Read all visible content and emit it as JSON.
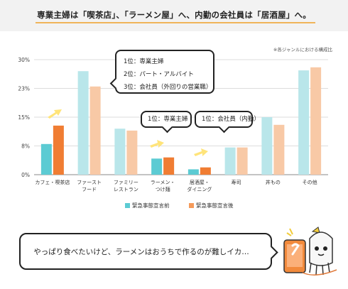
{
  "headline": {
    "title": "専業主婦は「喫茶店」、「ラーメン屋」へ、内勤の会社員は「居酒屋」へ。"
  },
  "chart_data": {
    "type": "bar",
    "note": "※各ジャンルにおける構成比",
    "categories": [
      "カフェ・喫茶店",
      "ファースト\nフード",
      "ファミリー\nレストラン",
      "ラーメン・\nつけ麺",
      "居酒屋・\nダイニング",
      "寿司",
      "丼もの",
      "その他"
    ],
    "series": [
      {
        "name": "緊急事態宣言前",
        "values": [
          8,
          27,
          12,
          4.2,
          1.4,
          7.1,
          15,
          27.2
        ],
        "color_normal": "#5ccbd3",
        "color_highlight": "#5ccbd3",
        "color_faded": "#b9e6ea"
      },
      {
        "name": "緊急事態宣言後",
        "values": [
          12.8,
          23,
          11.5,
          4.5,
          1.9,
          7.1,
          13,
          28
        ],
        "color_normal": "#f59a5a",
        "color_highlight": "#f07d33",
        "color_faded": "#f8c9a6"
      }
    ],
    "highlighted_categories": [
      0,
      3,
      4
    ],
    "yticks": [
      "0%",
      "8%",
      "15%",
      "23%",
      "30%"
    ],
    "ylim": [
      0,
      30
    ],
    "grid": true,
    "legend": "bottom"
  },
  "callouts": {
    "cafe": [
      "1位：専業主婦",
      "2位：パート・アルバイト",
      "3位：会社員（外回りの営業職）"
    ],
    "ramen": [
      "1位：専業主婦"
    ],
    "izakaya": [
      "1位：会社員（内勤）"
    ]
  },
  "bottom": {
    "text": "やっぱり食べたいけど、ラーメンはおうちで作るのが難しイカ…"
  }
}
